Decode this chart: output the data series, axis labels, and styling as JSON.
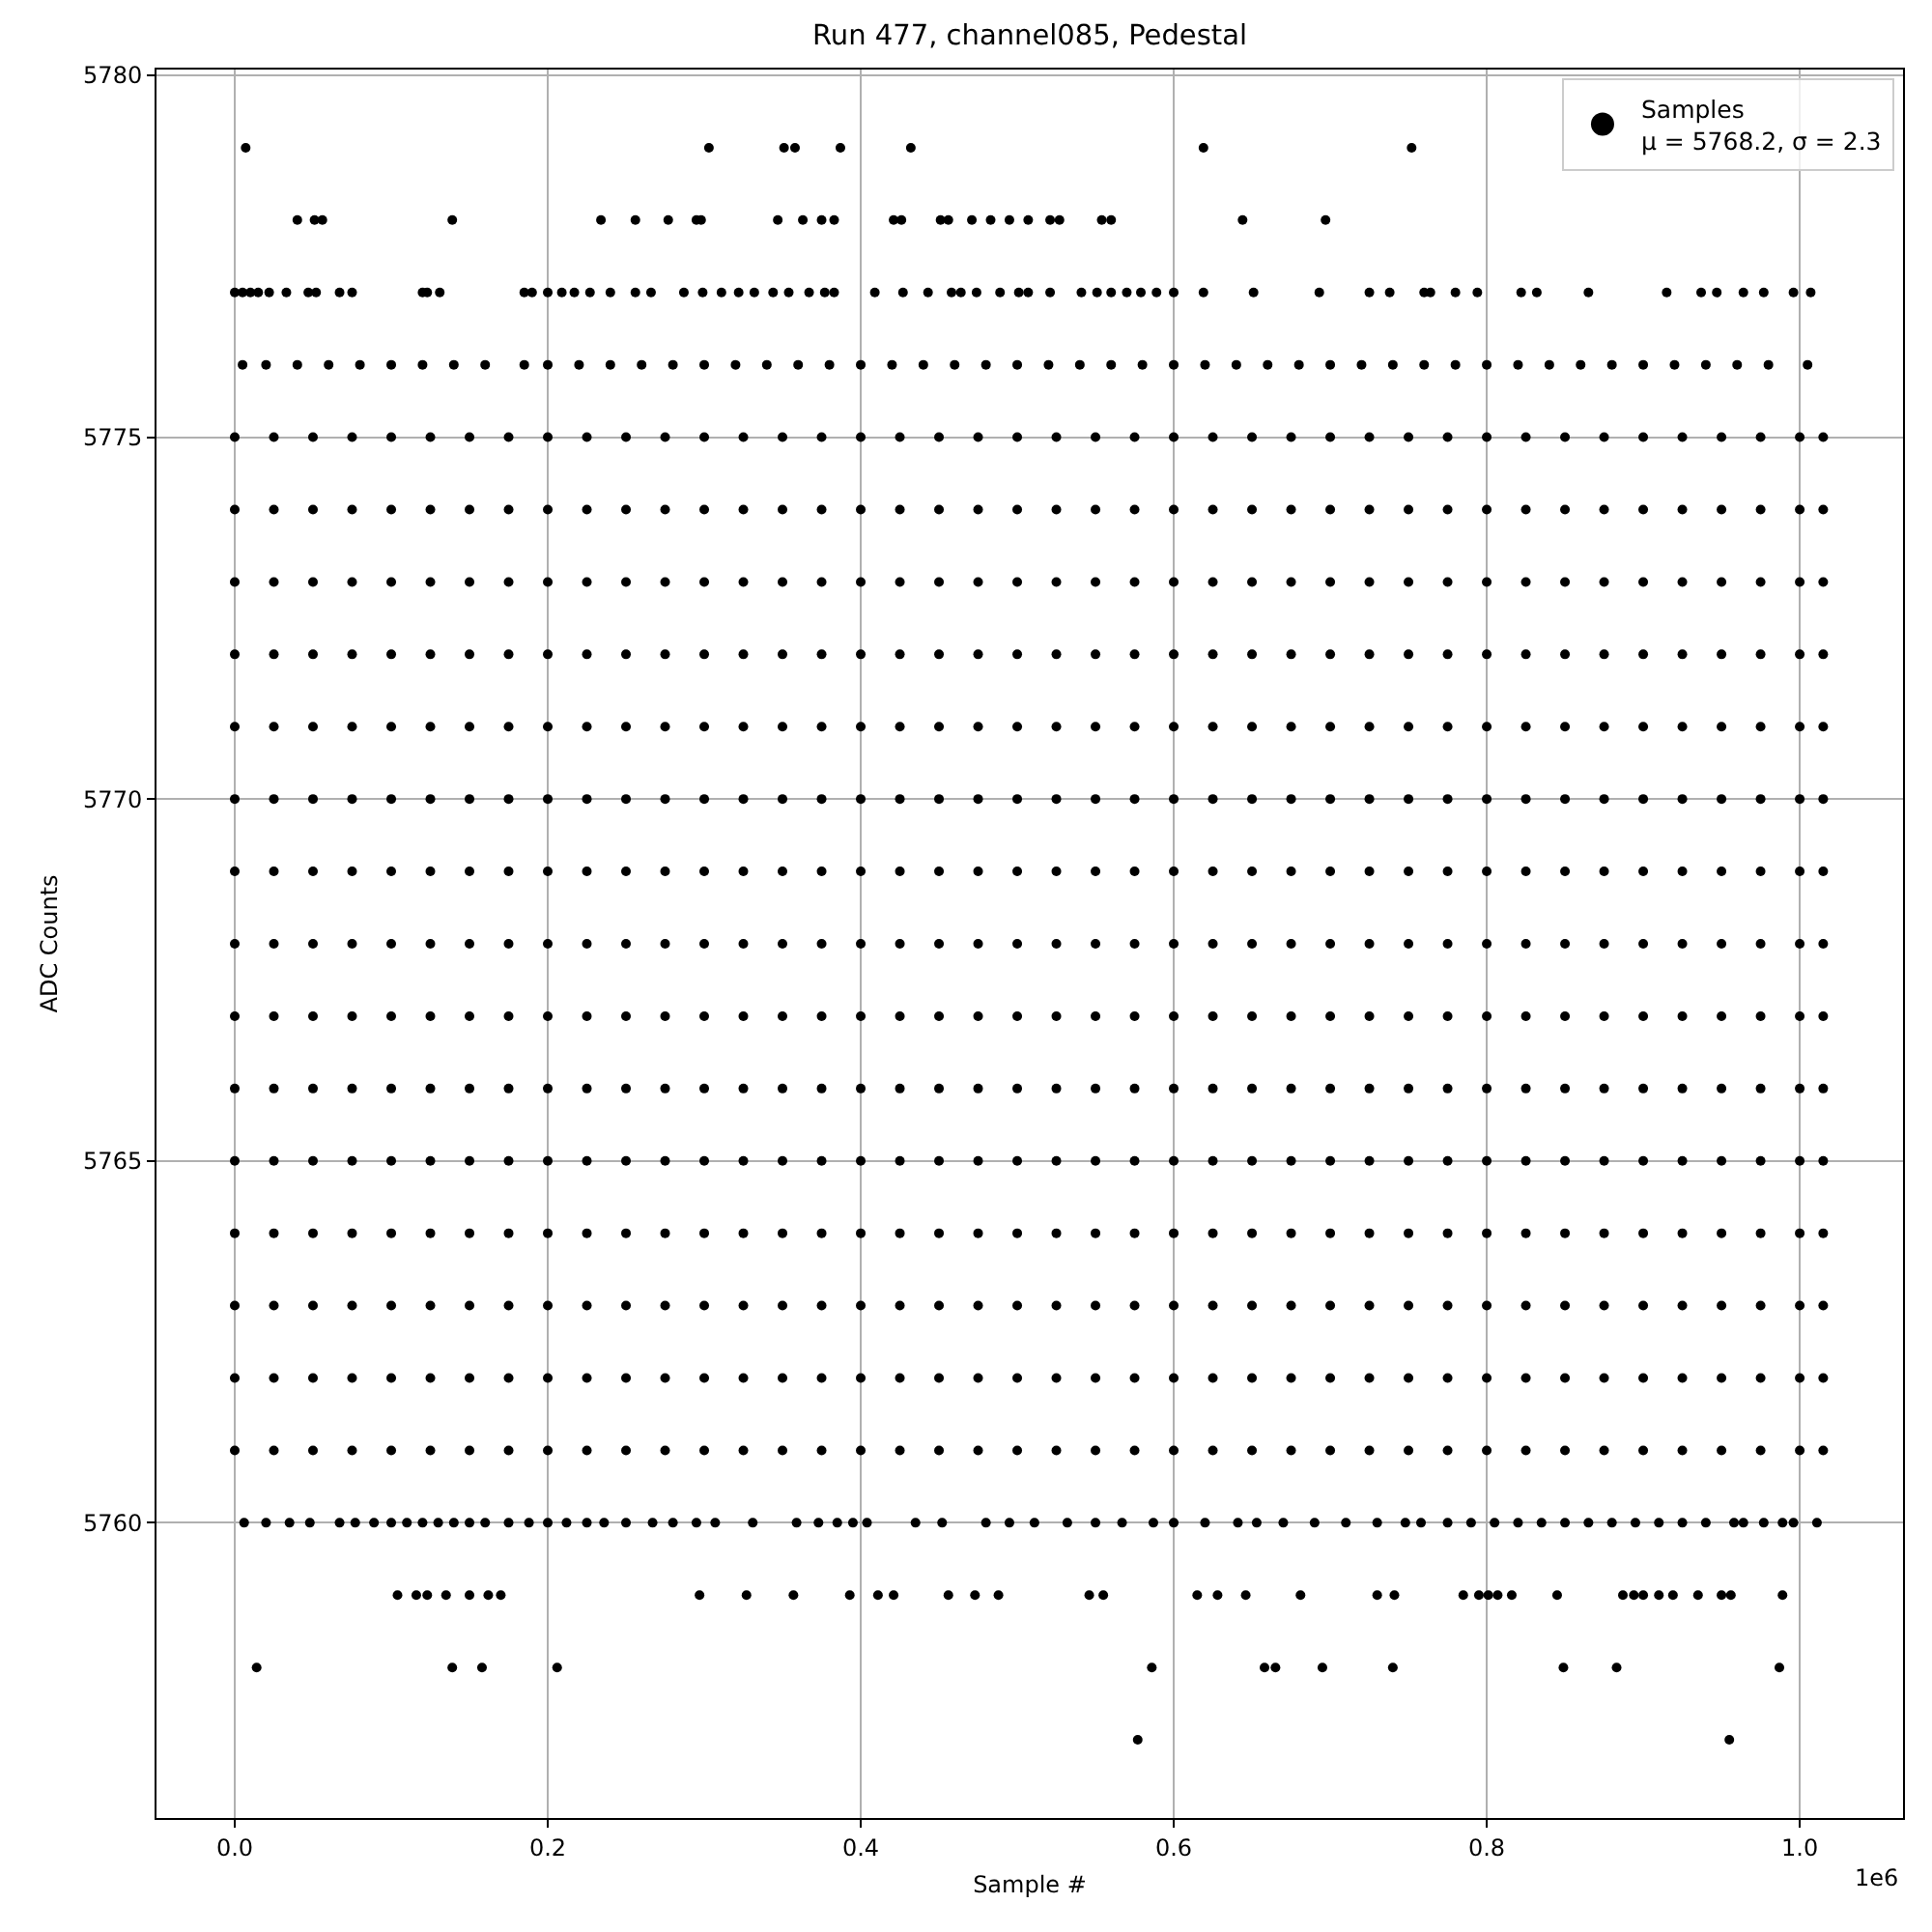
{
  "chart_data": {
    "type": "scatter",
    "title": "Run 477, channel085, Pedestal",
    "xlabel": "Sample #",
    "ylabel": "ADC Counts",
    "annotations": [
      "1e6"
    ],
    "xlim": [
      -0.05,
      1.066
    ],
    "ylim": [
      5755.92,
      5780.08
    ],
    "xticks": [
      {
        "value": 0,
        "label": "0.0"
      },
      {
        "value": 0.2,
        "label": "0.2"
      },
      {
        "value": 0.4,
        "label": "0.4"
      },
      {
        "value": 0.6,
        "label": "0.6"
      },
      {
        "value": 0.8,
        "label": "0.8"
      },
      {
        "value": 1.0,
        "label": "1.0"
      }
    ],
    "yticks": [
      5760,
      5765,
      5770,
      5775,
      5780
    ],
    "grid": true,
    "legend": "top right",
    "marker": "circle",
    "series": [
      {
        "name": "Samples\nμ = 5768.2, σ = 2.3",
        "color": "#000000",
        "x": [
          0.007,
          0.303,
          0.351,
          0.358,
          0.387,
          0.432,
          0.619,
          0.752,
          0.04,
          0.051,
          0.056,
          0.139,
          0.234,
          0.256,
          0.277,
          0.295,
          0.298,
          0.347,
          0.363,
          0.375,
          0.383,
          0.421,
          0.426,
          0.451,
          0.456,
          0.471,
          0.483,
          0.495,
          0.507,
          0.521,
          0.527,
          0.554,
          0.56,
          0.644,
          0.697,
          0,
          0.005,
          0.01,
          0.015,
          0.022,
          0.033,
          0.047,
          0.052,
          0.067,
          0.075,
          0.12,
          0.123,
          0.131,
          0.185,
          0.19,
          0.2,
          0.209,
          0.217,
          0.227,
          0.24,
          0.256,
          0.266,
          0.287,
          0.299,
          0.311,
          0.322,
          0.332,
          0.344,
          0.354,
          0.367,
          0.377,
          0.383,
          0.409,
          0.427,
          0.443,
          0.458,
          0.464,
          0.474,
          0.489,
          0.501,
          0.507,
          0.521,
          0.541,
          0.551,
          0.56,
          0.57,
          0.579,
          0.589,
          0.6,
          0.619,
          0.651,
          0.693,
          0.725,
          0.738,
          0.76,
          0.764,
          0.78,
          0.794,
          0.822,
          0.832,
          0.865,
          0.915,
          0.937,
          0.947,
          0.964,
          0.977,
          0.996,
          1.007,
          0.005,
          0.02,
          0.04,
          0.06,
          0.08,
          0.1,
          0.12,
          0.14,
          0.16,
          0.185,
          0.2,
          0.22,
          0.24,
          0.26,
          0.28,
          0.3,
          0.32,
          0.34,
          0.36,
          0.38,
          0.4,
          0.42,
          0.44,
          0.46,
          0.48,
          0.5,
          0.52,
          0.54,
          0.56,
          0.58,
          0.6,
          0.62,
          0.64,
          0.66,
          0.68,
          0.7,
          0.72,
          0.74,
          0.76,
          0.78,
          0.8,
          0.82,
          0.84,
          0.86,
          0.88,
          0.9,
          0.92,
          0.94,
          0.96,
          0.98,
          1.005,
          0,
          0.025,
          0.05,
          0.075,
          0.1,
          0.125,
          0.15,
          0.175,
          0.2,
          0.225,
          0.25,
          0.275,
          0.3,
          0.325,
          0.35,
          0.375,
          0.4,
          0.425,
          0.45,
          0.475,
          0.5,
          0.525,
          0.55,
          0.575,
          0.6,
          0.625,
          0.65,
          0.675,
          0.7,
          0.725,
          0.75,
          0.775,
          0.8,
          0.825,
          0.85,
          0.875,
          0.9,
          0.925,
          0.95,
          0.975,
          1.0,
          1.015,
          0,
          0.025,
          0.05,
          0.075,
          0.1,
          0.125,
          0.15,
          0.175,
          0.2,
          0.225,
          0.25,
          0.275,
          0.3,
          0.325,
          0.35,
          0.375,
          0.4,
          0.425,
          0.45,
          0.475,
          0.5,
          0.525,
          0.55,
          0.575,
          0.6,
          0.625,
          0.65,
          0.675,
          0.7,
          0.725,
          0.75,
          0.775,
          0.8,
          0.825,
          0.85,
          0.875,
          0.9,
          0.925,
          0.95,
          0.975,
          1.0,
          1.015,
          0,
          0.025,
          0.05,
          0.075,
          0.1,
          0.125,
          0.15,
          0.175,
          0.2,
          0.225,
          0.25,
          0.275,
          0.3,
          0.325,
          0.35,
          0.375,
          0.4,
          0.425,
          0.45,
          0.475,
          0.5,
          0.525,
          0.55,
          0.575,
          0.6,
          0.625,
          0.65,
          0.675,
          0.7,
          0.725,
          0.75,
          0.775,
          0.8,
          0.825,
          0.85,
          0.875,
          0.9,
          0.925,
          0.95,
          0.975,
          1.0,
          1.015,
          0,
          0.025,
          0.05,
          0.075,
          0.1,
          0.125,
          0.15,
          0.175,
          0.2,
          0.225,
          0.25,
          0.275,
          0.3,
          0.325,
          0.35,
          0.375,
          0.4,
          0.425,
          0.45,
          0.475,
          0.5,
          0.525,
          0.55,
          0.575,
          0.6,
          0.625,
          0.65,
          0.675,
          0.7,
          0.725,
          0.75,
          0.775,
          0.8,
          0.825,
          0.85,
          0.875,
          0.9,
          0.925,
          0.95,
          0.975,
          1.0,
          1.015,
          0,
          0.025,
          0.05,
          0.075,
          0.1,
          0.125,
          0.15,
          0.175,
          0.2,
          0.225,
          0.25,
          0.275,
          0.3,
          0.325,
          0.35,
          0.375,
          0.4,
          0.425,
          0.45,
          0.475,
          0.5,
          0.525,
          0.55,
          0.575,
          0.6,
          0.625,
          0.65,
          0.675,
          0.7,
          0.725,
          0.75,
          0.775,
          0.8,
          0.825,
          0.85,
          0.875,
          0.9,
          0.925,
          0.95,
          0.975,
          1.0,
          1.015,
          0,
          0.025,
          0.05,
          0.075,
          0.1,
          0.125,
          0.15,
          0.175,
          0.2,
          0.225,
          0.25,
          0.275,
          0.3,
          0.325,
          0.35,
          0.375,
          0.4,
          0.425,
          0.45,
          0.475,
          0.5,
          0.525,
          0.55,
          0.575,
          0.6,
          0.625,
          0.65,
          0.675,
          0.7,
          0.725,
          0.75,
          0.775,
          0.8,
          0.825,
          0.85,
          0.875,
          0.9,
          0.925,
          0.95,
          0.975,
          1.0,
          1.015,
          0,
          0.025,
          0.05,
          0.075,
          0.1,
          0.125,
          0.15,
          0.175,
          0.2,
          0.225,
          0.25,
          0.275,
          0.3,
          0.325,
          0.35,
          0.375,
          0.4,
          0.425,
          0.45,
          0.475,
          0.5,
          0.525,
          0.55,
          0.575,
          0.6,
          0.625,
          0.65,
          0.675,
          0.7,
          0.725,
          0.75,
          0.775,
          0.8,
          0.825,
          0.85,
          0.875,
          0.9,
          0.925,
          0.95,
          0.975,
          1.0,
          1.015,
          0,
          0.025,
          0.05,
          0.075,
          0.1,
          0.125,
          0.15,
          0.175,
          0.2,
          0.225,
          0.25,
          0.275,
          0.3,
          0.325,
          0.35,
          0.375,
          0.4,
          0.425,
          0.45,
          0.475,
          0.5,
          0.525,
          0.55,
          0.575,
          0.6,
          0.625,
          0.65,
          0.675,
          0.7,
          0.725,
          0.75,
          0.775,
          0.8,
          0.825,
          0.85,
          0.875,
          0.9,
          0.925,
          0.95,
          0.975,
          1.0,
          1.015,
          0,
          0.025,
          0.05,
          0.075,
          0.1,
          0.125,
          0.15,
          0.175,
          0.2,
          0.225,
          0.25,
          0.275,
          0.3,
          0.325,
          0.35,
          0.375,
          0.4,
          0.425,
          0.45,
          0.475,
          0.5,
          0.525,
          0.55,
          0.575,
          0.6,
          0.625,
          0.65,
          0.675,
          0.7,
          0.725,
          0.75,
          0.775,
          0.8,
          0.825,
          0.85,
          0.875,
          0.9,
          0.925,
          0.95,
          0.975,
          1.0,
          1.015,
          0,
          0.025,
          0.05,
          0.075,
          0.1,
          0.125,
          0.15,
          0.175,
          0.2,
          0.225,
          0.25,
          0.275,
          0.3,
          0.325,
          0.35,
          0.375,
          0.4,
          0.425,
          0.45,
          0.475,
          0.5,
          0.525,
          0.55,
          0.575,
          0.6,
          0.625,
          0.65,
          0.675,
          0.7,
          0.725,
          0.75,
          0.775,
          0.8,
          0.825,
          0.85,
          0.875,
          0.9,
          0.925,
          0.95,
          0.975,
          1.0,
          1.015,
          0,
          0.025,
          0.05,
          0.075,
          0.1,
          0.125,
          0.15,
          0.175,
          0.2,
          0.225,
          0.25,
          0.275,
          0.3,
          0.325,
          0.35,
          0.375,
          0.4,
          0.425,
          0.45,
          0.475,
          0.5,
          0.525,
          0.55,
          0.575,
          0.6,
          0.625,
          0.65,
          0.675,
          0.7,
          0.725,
          0.75,
          0.775,
          0.8,
          0.825,
          0.85,
          0.875,
          0.9,
          0.925,
          0.95,
          0.975,
          1.0,
          1.015,
          0,
          0.025,
          0.05,
          0.075,
          0.1,
          0.125,
          0.15,
          0.175,
          0.2,
          0.225,
          0.25,
          0.275,
          0.3,
          0.325,
          0.35,
          0.375,
          0.4,
          0.425,
          0.45,
          0.475,
          0.5,
          0.525,
          0.55,
          0.575,
          0.6,
          0.625,
          0.65,
          0.675,
          0.7,
          0.725,
          0.75,
          0.775,
          0.8,
          0.825,
          0.85,
          0.875,
          0.9,
          0.925,
          0.95,
          0.975,
          1.0,
          1.015,
          0,
          0.025,
          0.05,
          0.075,
          0.1,
          0.125,
          0.15,
          0.175,
          0.2,
          0.225,
          0.25,
          0.275,
          0.3,
          0.325,
          0.35,
          0.375,
          0.4,
          0.425,
          0.45,
          0.475,
          0.5,
          0.525,
          0.55,
          0.575,
          0.6,
          0.625,
          0.65,
          0.675,
          0.7,
          0.725,
          0.75,
          0.775,
          0.8,
          0.825,
          0.85,
          0.875,
          0.9,
          0.925,
          0.95,
          0.975,
          1.0,
          1.015,
          0,
          0.025,
          0.05,
          0.075,
          0.1,
          0.125,
          0.15,
          0.175,
          0.2,
          0.225,
          0.25,
          0.275,
          0.3,
          0.325,
          0.35,
          0.375,
          0.4,
          0.425,
          0.45,
          0.475,
          0.5,
          0.525,
          0.55,
          0.575,
          0.6,
          0.625,
          0.65,
          0.675,
          0.7,
          0.725,
          0.75,
          0.775,
          0.8,
          0.825,
          0.85,
          0.875,
          0.9,
          0.925,
          0.95,
          0.975,
          1.0,
          1.015,
          0,
          0.025,
          0.05,
          0.075,
          0.1,
          0.125,
          0.15,
          0.175,
          0.2,
          0.225,
          0.25,
          0.275,
          0.3,
          0.325,
          0.35,
          0.375,
          0.4,
          0.425,
          0.45,
          0.475,
          0.5,
          0.525,
          0.55,
          0.575,
          0.6,
          0.625,
          0.65,
          0.675,
          0.7,
          0.725,
          0.75,
          0.775,
          0.8,
          0.825,
          0.85,
          0.875,
          0.9,
          0.925,
          0.95,
          0.975,
          1.0,
          1.015,
          0.006,
          0.02,
          0.035,
          0.048,
          0.067,
          0.077,
          0.089,
          0.1,
          0.11,
          0.12,
          0.13,
          0.14,
          0.15,
          0.16,
          0.175,
          0.188,
          0.2,
          0.212,
          0.225,
          0.236,
          0.25,
          0.267,
          0.28,
          0.295,
          0.307,
          0.331,
          0.359,
          0.373,
          0.385,
          0.395,
          0.404,
          0.435,
          0.452,
          0.48,
          0.495,
          0.511,
          0.532,
          0.55,
          0.567,
          0.587,
          0.6,
          0.62,
          0.641,
          0.653,
          0.67,
          0.69,
          0.71,
          0.73,
          0.748,
          0.758,
          0.775,
          0.79,
          0.805,
          0.82,
          0.835,
          0.85,
          0.865,
          0.88,
          0.895,
          0.91,
          0.925,
          0.94,
          0.958,
          0.964,
          0.977,
          0.989,
          0.996,
          1.011,
          0.104,
          0.116,
          0.123,
          0.135,
          0.15,
          0.162,
          0.17,
          0.297,
          0.327,
          0.357,
          0.393,
          0.411,
          0.421,
          0.456,
          0.473,
          0.488,
          0.546,
          0.555,
          0.615,
          0.628,
          0.646,
          0.681,
          0.73,
          0.741,
          0.785,
          0.795,
          0.801,
          0.807,
          0.816,
          0.845,
          0.887,
          0.894,
          0.9,
          0.91,
          0.919,
          0.935,
          0.95,
          0.956,
          0.989,
          0.014,
          0.139,
          0.158,
          0.206,
          0.586,
          0.658,
          0.665,
          0.695,
          0.74,
          0.849,
          0.883,
          0.987,
          0.577,
          0.955
        ],
        "values": [
          5779,
          5779,
          5779,
          5779,
          5779,
          5779,
          5779,
          5779,
          5778,
          5778,
          5778,
          5778,
          5778,
          5778,
          5778,
          5778,
          5778,
          5778,
          5778,
          5778,
          5778,
          5778,
          5778,
          5778,
          5778,
          5778,
          5778,
          5778,
          5778,
          5778,
          5778,
          5778,
          5778,
          5778,
          5778,
          5777,
          5777,
          5777,
          5777,
          5777,
          5777,
          5777,
          5777,
          5777,
          5777,
          5777,
          5777,
          5777,
          5777,
          5777,
          5777,
          5777,
          5777,
          5777,
          5777,
          5777,
          5777,
          5777,
          5777,
          5777,
          5777,
          5777,
          5777,
          5777,
          5777,
          5777,
          5777,
          5777,
          5777,
          5777,
          5777,
          5777,
          5777,
          5777,
          5777,
          5777,
          5777,
          5777,
          5777,
          5777,
          5777,
          5777,
          5777,
          5777,
          5777,
          5777,
          5777,
          5777,
          5777,
          5777,
          5777,
          5777,
          5777,
          5777,
          5777,
          5777,
          5777,
          5777,
          5777,
          5777,
          5777,
          5777,
          5777,
          5776,
          5776,
          5776,
          5776,
          5776,
          5776,
          5776,
          5776,
          5776,
          5776,
          5776,
          5776,
          5776,
          5776,
          5776,
          5776,
          5776,
          5776,
          5776,
          5776,
          5776,
          5776,
          5776,
          5776,
          5776,
          5776,
          5776,
          5776,
          5776,
          5776,
          5776,
          5776,
          5776,
          5776,
          5776,
          5776,
          5776,
          5776,
          5776,
          5776,
          5776,
          5776,
          5776,
          5776,
          5776,
          5776,
          5776,
          5776,
          5776,
          5776,
          5776,
          5775,
          5775,
          5775,
          5775,
          5775,
          5775,
          5775,
          5775,
          5775,
          5775,
          5775,
          5775,
          5775,
          5775,
          5775,
          5775,
          5775,
          5775,
          5775,
          5775,
          5775,
          5775,
          5775,
          5775,
          5775,
          5775,
          5775,
          5775,
          5775,
          5775,
          5775,
          5775,
          5775,
          5775,
          5775,
          5775,
          5775,
          5775,
          5775,
          5775,
          5775,
          5775,
          5774,
          5774,
          5774,
          5774,
          5774,
          5774,
          5774,
          5774,
          5774,
          5774,
          5774,
          5774,
          5774,
          5774,
          5774,
          5774,
          5774,
          5774,
          5774,
          5774,
          5774,
          5774,
          5774,
          5774,
          5774,
          5774,
          5774,
          5774,
          5774,
          5774,
          5774,
          5774,
          5774,
          5774,
          5774,
          5774,
          5774,
          5774,
          5774,
          5774,
          5774,
          5774,
          5773,
          5773,
          5773,
          5773,
          5773,
          5773,
          5773,
          5773,
          5773,
          5773,
          5773,
          5773,
          5773,
          5773,
          5773,
          5773,
          5773,
          5773,
          5773,
          5773,
          5773,
          5773,
          5773,
          5773,
          5773,
          5773,
          5773,
          5773,
          5773,
          5773,
          5773,
          5773,
          5773,
          5773,
          5773,
          5773,
          5773,
          5773,
          5773,
          5773,
          5773,
          5773,
          5772,
          5772,
          5772,
          5772,
          5772,
          5772,
          5772,
          5772,
          5772,
          5772,
          5772,
          5772,
          5772,
          5772,
          5772,
          5772,
          5772,
          5772,
          5772,
          5772,
          5772,
          5772,
          5772,
          5772,
          5772,
          5772,
          5772,
          5772,
          5772,
          5772,
          5772,
          5772,
          5772,
          5772,
          5772,
          5772,
          5772,
          5772,
          5772,
          5772,
          5772,
          5772,
          5771,
          5771,
          5771,
          5771,
          5771,
          5771,
          5771,
          5771,
          5771,
          5771,
          5771,
          5771,
          5771,
          5771,
          5771,
          5771,
          5771,
          5771,
          5771,
          5771,
          5771,
          5771,
          5771,
          5771,
          5771,
          5771,
          5771,
          5771,
          5771,
          5771,
          5771,
          5771,
          5771,
          5771,
          5771,
          5771,
          5771,
          5771,
          5771,
          5771,
          5771,
          5771,
          5770,
          5770,
          5770,
          5770,
          5770,
          5770,
          5770,
          5770,
          5770,
          5770,
          5770,
          5770,
          5770,
          5770,
          5770,
          5770,
          5770,
          5770,
          5770,
          5770,
          5770,
          5770,
          5770,
          5770,
          5770,
          5770,
          5770,
          5770,
          5770,
          5770,
          5770,
          5770,
          5770,
          5770,
          5770,
          5770,
          5770,
          5770,
          5770,
          5770,
          5770,
          5770,
          5769,
          5769,
          5769,
          5769,
          5769,
          5769,
          5769,
          5769,
          5769,
          5769,
          5769,
          5769,
          5769,
          5769,
          5769,
          5769,
          5769,
          5769,
          5769,
          5769,
          5769,
          5769,
          5769,
          5769,
          5769,
          5769,
          5769,
          5769,
          5769,
          5769,
          5769,
          5769,
          5769,
          5769,
          5769,
          5769,
          5769,
          5769,
          5769,
          5769,
          5769,
          5769,
          5768,
          5768,
          5768,
          5768,
          5768,
          5768,
          5768,
          5768,
          5768,
          5768,
          5768,
          5768,
          5768,
          5768,
          5768,
          5768,
          5768,
          5768,
          5768,
          5768,
          5768,
          5768,
          5768,
          5768,
          5768,
          5768,
          5768,
          5768,
          5768,
          5768,
          5768,
          5768,
          5768,
          5768,
          5768,
          5768,
          5768,
          5768,
          5768,
          5768,
          5768,
          5768,
          5767,
          5767,
          5767,
          5767,
          5767,
          5767,
          5767,
          5767,
          5767,
          5767,
          5767,
          5767,
          5767,
          5767,
          5767,
          5767,
          5767,
          5767,
          5767,
          5767,
          5767,
          5767,
          5767,
          5767,
          5767,
          5767,
          5767,
          5767,
          5767,
          5767,
          5767,
          5767,
          5767,
          5767,
          5767,
          5767,
          5767,
          5767,
          5767,
          5767,
          5767,
          5767,
          5766,
          5766,
          5766,
          5766,
          5766,
          5766,
          5766,
          5766,
          5766,
          5766,
          5766,
          5766,
          5766,
          5766,
          5766,
          5766,
          5766,
          5766,
          5766,
          5766,
          5766,
          5766,
          5766,
          5766,
          5766,
          5766,
          5766,
          5766,
          5766,
          5766,
          5766,
          5766,
          5766,
          5766,
          5766,
          5766,
          5766,
          5766,
          5766,
          5766,
          5766,
          5766,
          5765,
          5765,
          5765,
          5765,
          5765,
          5765,
          5765,
          5765,
          5765,
          5765,
          5765,
          5765,
          5765,
          5765,
          5765,
          5765,
          5765,
          5765,
          5765,
          5765,
          5765,
          5765,
          5765,
          5765,
          5765,
          5765,
          5765,
          5765,
          5765,
          5765,
          5765,
          5765,
          5765,
          5765,
          5765,
          5765,
          5765,
          5765,
          5765,
          5765,
          5765,
          5765,
          5764,
          5764,
          5764,
          5764,
          5764,
          5764,
          5764,
          5764,
          5764,
          5764,
          5764,
          5764,
          5764,
          5764,
          5764,
          5764,
          5764,
          5764,
          5764,
          5764,
          5764,
          5764,
          5764,
          5764,
          5764,
          5764,
          5764,
          5764,
          5764,
          5764,
          5764,
          5764,
          5764,
          5764,
          5764,
          5764,
          5764,
          5764,
          5764,
          5764,
          5764,
          5764,
          5763,
          5763,
          5763,
          5763,
          5763,
          5763,
          5763,
          5763,
          5763,
          5763,
          5763,
          5763,
          5763,
          5763,
          5763,
          5763,
          5763,
          5763,
          5763,
          5763,
          5763,
          5763,
          5763,
          5763,
          5763,
          5763,
          5763,
          5763,
          5763,
          5763,
          5763,
          5763,
          5763,
          5763,
          5763,
          5763,
          5763,
          5763,
          5763,
          5763,
          5763,
          5763,
          5762,
          5762,
          5762,
          5762,
          5762,
          5762,
          5762,
          5762,
          5762,
          5762,
          5762,
          5762,
          5762,
          5762,
          5762,
          5762,
          5762,
          5762,
          5762,
          5762,
          5762,
          5762,
          5762,
          5762,
          5762,
          5762,
          5762,
          5762,
          5762,
          5762,
          5762,
          5762,
          5762,
          5762,
          5762,
          5762,
          5762,
          5762,
          5762,
          5762,
          5762,
          5762,
          5761,
          5761,
          5761,
          5761,
          5761,
          5761,
          5761,
          5761,
          5761,
          5761,
          5761,
          5761,
          5761,
          5761,
          5761,
          5761,
          5761,
          5761,
          5761,
          5761,
          5761,
          5761,
          5761,
          5761,
          5761,
          5761,
          5761,
          5761,
          5761,
          5761,
          5761,
          5761,
          5761,
          5761,
          5761,
          5761,
          5761,
          5761,
          5761,
          5761,
          5761,
          5761,
          5760,
          5760,
          5760,
          5760,
          5760,
          5760,
          5760,
          5760,
          5760,
          5760,
          5760,
          5760,
          5760,
          5760,
          5760,
          5760,
          5760,
          5760,
          5760,
          5760,
          5760,
          5760,
          5760,
          5760,
          5760,
          5760,
          5760,
          5760,
          5760,
          5760,
          5760,
          5760,
          5760,
          5760,
          5760,
          5760,
          5760,
          5760,
          5760,
          5760,
          5760,
          5760,
          5760,
          5760,
          5760,
          5760,
          5760,
          5760,
          5760,
          5760,
          5760,
          5760,
          5760,
          5760,
          5760,
          5760,
          5760,
          5760,
          5760,
          5760,
          5760,
          5760,
          5760,
          5760,
          5760,
          5760,
          5760,
          5760,
          5759,
          5759,
          5759,
          5759,
          5759,
          5759,
          5759,
          5759,
          5759,
          5759,
          5759,
          5759,
          5759,
          5759,
          5759,
          5759,
          5759,
          5759,
          5759,
          5759,
          5759,
          5759,
          5759,
          5759,
          5759,
          5759,
          5759,
          5759,
          5759,
          5759,
          5759,
          5759,
          5759,
          5759,
          5759,
          5759,
          5759,
          5759,
          5759,
          5758,
          5758,
          5758,
          5758,
          5758,
          5758,
          5758,
          5758,
          5758,
          5758,
          5758,
          5758,
          5757,
          5757
        ]
      }
    ]
  }
}
